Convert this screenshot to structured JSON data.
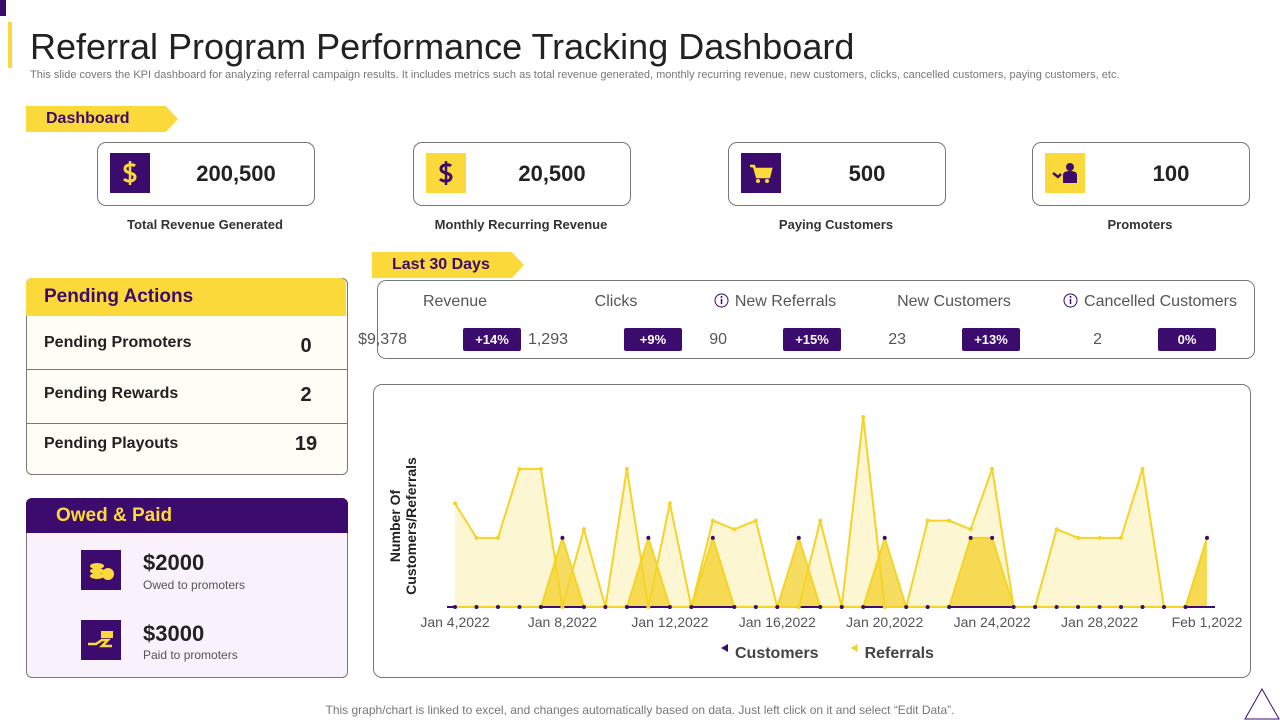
{
  "header": {
    "title": "Referral Program Performance Tracking Dashboard",
    "subtitle": "This slide covers the KPI dashboard for analyzing referral campaign results. It includes metrics such as total revenue generated, monthly recurring revenue, new customers, clicks, cancelled customers, paying customers, etc."
  },
  "dashboard": {
    "label": "Dashboard",
    "kpis": [
      {
        "value": "200,500",
        "label": "Total Revenue Generated"
      },
      {
        "value": "20,500",
        "label": "Monthly Recurring Revenue"
      },
      {
        "value": "500",
        "label": "Paying Customers"
      },
      {
        "value": "100",
        "label": "Promoters"
      }
    ]
  },
  "pending_actions": {
    "title": "Pending Actions",
    "items": [
      {
        "label": "Pending Promoters",
        "value": 0
      },
      {
        "label": "Pending Rewards",
        "value": 2
      },
      {
        "label": "Pending Playouts",
        "value": 19
      }
    ]
  },
  "owed_paid": {
    "title": "Owed & Paid",
    "items": [
      {
        "amount": "$2000",
        "note": "Owed to promoters"
      },
      {
        "amount": "$3000",
        "note": "Paid to promoters"
      }
    ]
  },
  "last_30_days": {
    "label": "Last 30 Days",
    "metrics": [
      {
        "name": "Revenue",
        "value": "$9,378",
        "change": "+14%"
      },
      {
        "name": "Clicks",
        "value": "1,293",
        "change": "+9%"
      },
      {
        "name": "New Referrals",
        "value": "90",
        "change": "+15%"
      },
      {
        "name": "New Customers",
        "value": "23",
        "change": "+13%"
      },
      {
        "name": "Cancelled Customers",
        "value": "2",
        "change": "0%"
      }
    ]
  },
  "chart_data": {
    "type": "area",
    "y_axis_label": "Number Of Customers/Referrals",
    "categories": [
      "Jan 4,2022",
      null,
      null,
      null,
      null,
      "Jan 8,2022",
      null,
      null,
      null,
      null,
      "Jan 12,2022",
      null,
      null,
      null,
      null,
      "Jan 16,2022",
      null,
      null,
      null,
      null,
      "Jan 20,2022",
      null,
      null,
      null,
      null,
      "Jan 24,2022",
      null,
      null,
      null,
      null,
      "Jan 28,2022",
      null,
      null,
      null,
      null,
      "Feb 1,2022"
    ],
    "ylim": [
      0,
      11
    ],
    "series": [
      {
        "name": "Customers",
        "color": "#3b0b6e",
        "fill": "#f2cf1e",
        "values": [
          0,
          0,
          0,
          0,
          0,
          4,
          0,
          0,
          0,
          4,
          0,
          0,
          4,
          0,
          0,
          0,
          4,
          0,
          0,
          0,
          4,
          0,
          0,
          0,
          4,
          4,
          0,
          0,
          0,
          0,
          0,
          0,
          0,
          0,
          0,
          4
        ]
      },
      {
        "name": "Referrals",
        "color": "#f5d327",
        "fill": "#fbe98f",
        "values": [
          6,
          4,
          4,
          8,
          8,
          0,
          4.5,
          0,
          8,
          0,
          6,
          0,
          5,
          4.5,
          5,
          0,
          0,
          5,
          0,
          11,
          0,
          0,
          5,
          5,
          4.5,
          8,
          0,
          0,
          4.5,
          4,
          4,
          4,
          8,
          0,
          0,
          4
        ]
      }
    ]
  },
  "footer": "This graph/chart is linked to excel,  and changes automatically based on data. Just left click on it and select “Edit Data”."
}
